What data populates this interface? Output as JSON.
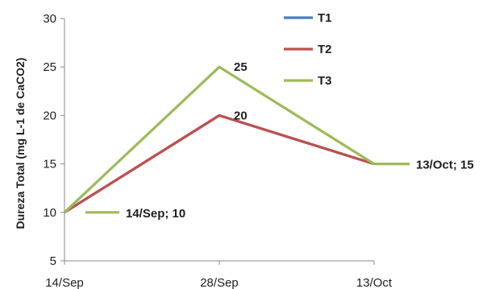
{
  "chart_data": {
    "type": "line",
    "title": "",
    "xlabel": "",
    "ylabel": "Dureza Total (mg  L-1 de CaCO2)",
    "categories": [
      "14/Sep",
      "28/Sep",
      "13/Oct"
    ],
    "ylim": [
      5,
      30
    ],
    "yticks": [
      5,
      10,
      15,
      20,
      25,
      30
    ],
    "grid": false,
    "legend_position": "top-right",
    "series": [
      {
        "name": "T1",
        "values": [
          10,
          20,
          15
        ],
        "color": "#4a7ebb"
      },
      {
        "name": "T2",
        "values": [
          10,
          20,
          15
        ],
        "color": "#c0504d"
      },
      {
        "name": "T3",
        "values": [
          10,
          25,
          15
        ],
        "color": "#9bbb59"
      }
    ],
    "annotations": [
      {
        "text": "25",
        "series": "T3",
        "index": 1
      },
      {
        "text": "20",
        "series": "T2",
        "index": 1
      },
      {
        "text": "14/Sep; 10",
        "series": "T3",
        "index": 0
      },
      {
        "text": "13/Oct; 15",
        "series": "T3",
        "index": 2
      }
    ]
  }
}
